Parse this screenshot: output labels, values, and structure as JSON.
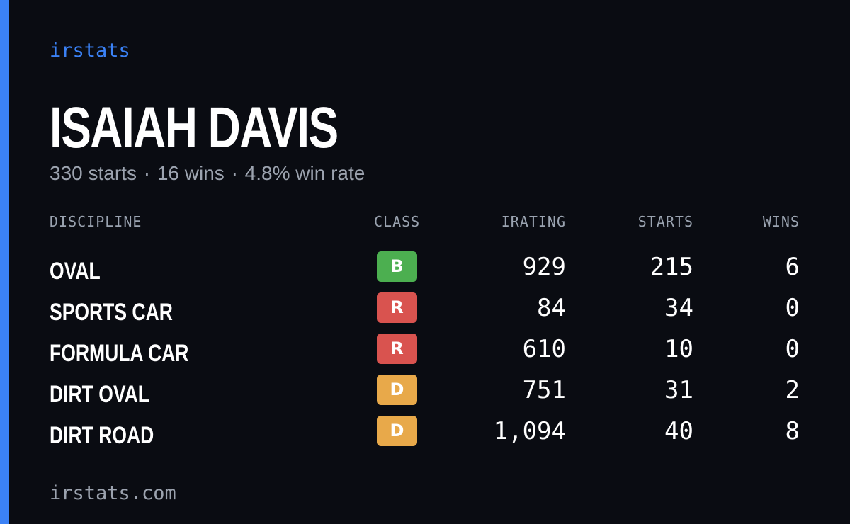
{
  "brand": "irstats",
  "driver": {
    "name": "ISAIAH DAVIS",
    "starts_text": "330 starts",
    "wins_text": "16 wins",
    "win_rate_text": "4.8% win rate",
    "separator": "·"
  },
  "table": {
    "headers": {
      "discipline": "DISCIPLINE",
      "class": "CLASS",
      "irating": "IRATING",
      "starts": "STARTS",
      "wins": "WINS"
    },
    "rows": [
      {
        "discipline": "OVAL",
        "class": "B",
        "class_color": "#4caf50",
        "irating": "929",
        "starts": "215",
        "wins": "6"
      },
      {
        "discipline": "SPORTS CAR",
        "class": "R",
        "class_color": "#d9534f",
        "irating": "84",
        "starts": "34",
        "wins": "0"
      },
      {
        "discipline": "FORMULA CAR",
        "class": "R",
        "class_color": "#d9534f",
        "irating": "610",
        "starts": "10",
        "wins": "0"
      },
      {
        "discipline": "DIRT OVAL",
        "class": "D",
        "class_color": "#e8a94a",
        "irating": "751",
        "starts": "31",
        "wins": "2"
      },
      {
        "discipline": "DIRT ROAD",
        "class": "D",
        "class_color": "#e8a94a",
        "irating": "1,094",
        "starts": "40",
        "wins": "8"
      }
    ]
  },
  "footer": "irstats.com",
  "colors": {
    "background": "#0a0c12",
    "accent": "#3b82f6",
    "muted_text": "#9ca3af"
  }
}
